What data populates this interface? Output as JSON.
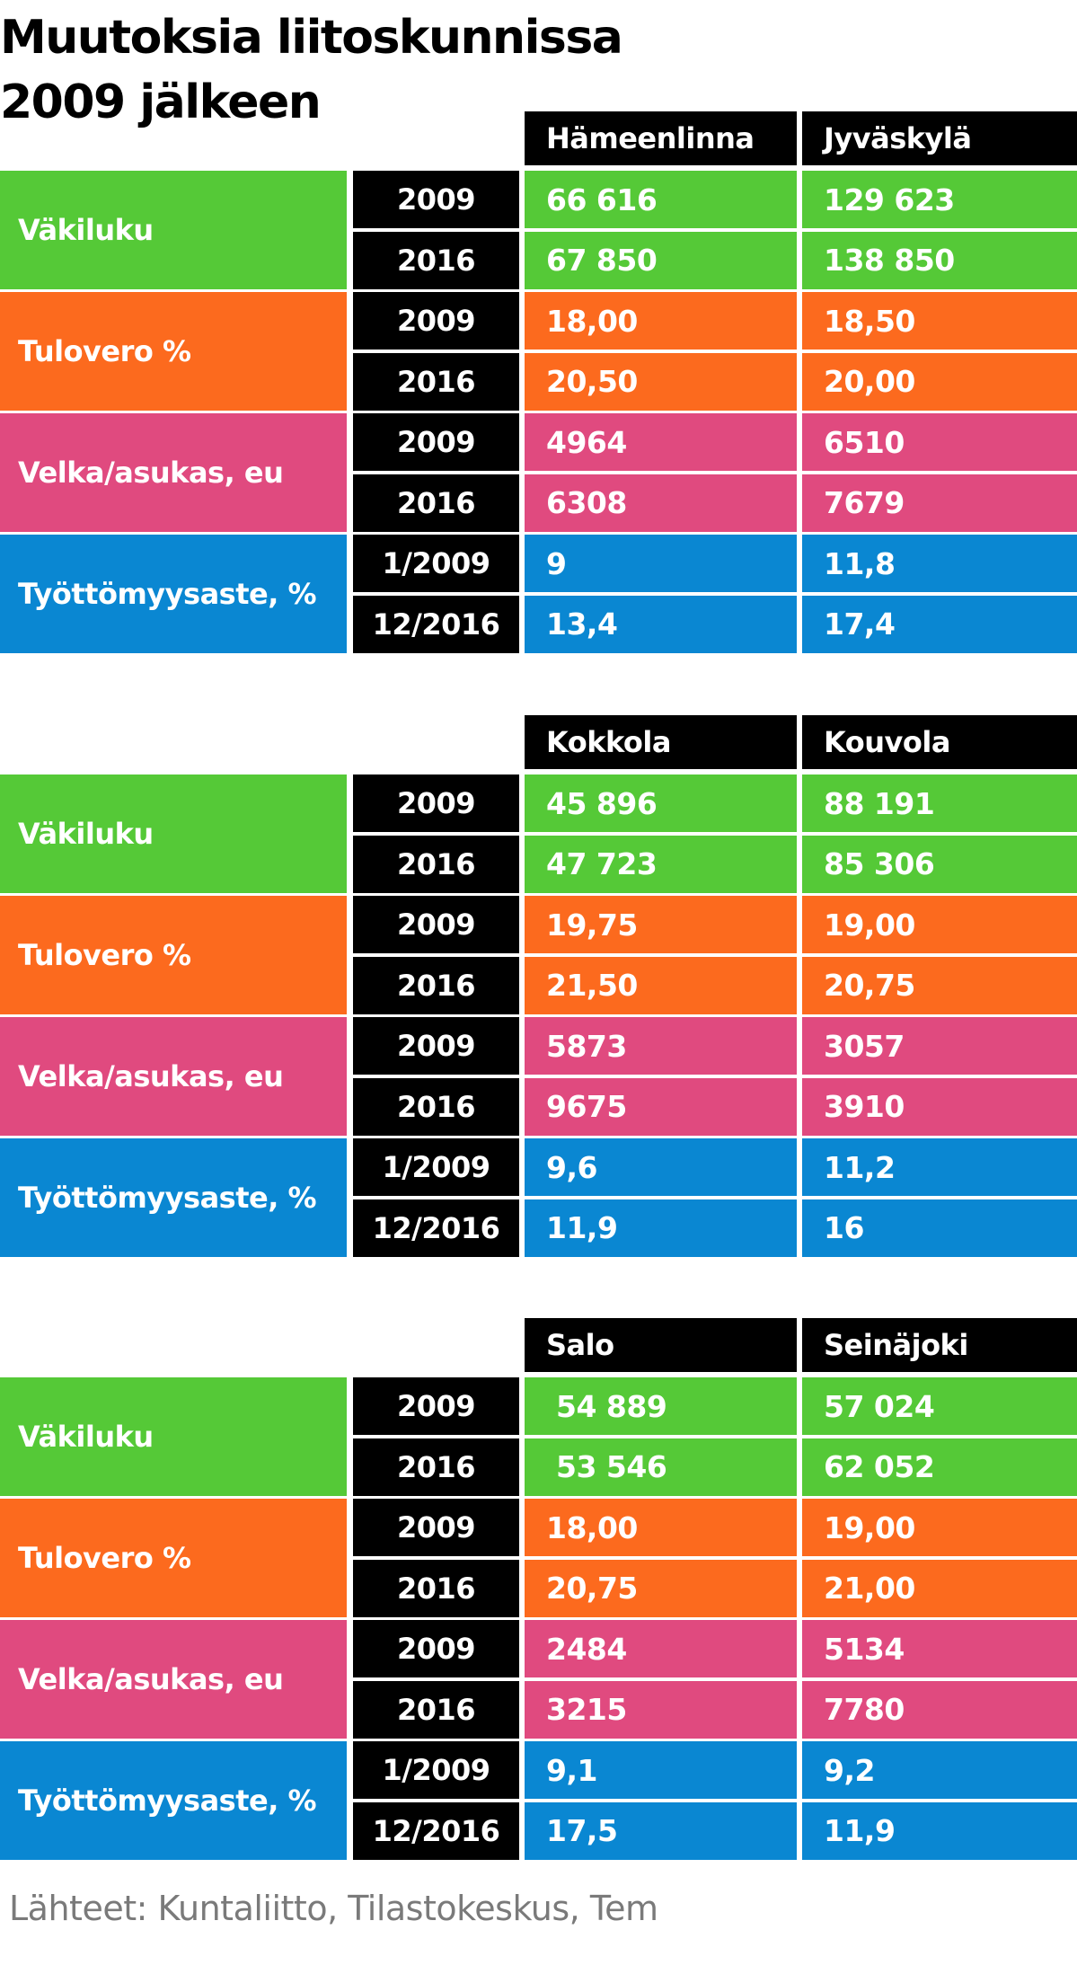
{
  "title_lines": [
    "Muutoksia liitoskunnissa",
    "2009 jälkeen"
  ],
  "source": "Lähteet: Kuntaliitto, Tilastokeskus, Tem",
  "colors": {
    "population": "#55c937",
    "tax": "#fc6a1e",
    "debt": "#e04a7f",
    "unemployment": "#0a87d2",
    "header": "#000000"
  },
  "chart_data": [
    {
      "type": "table",
      "columns": [
        "Hämeenlinna",
        "Jyväskylä"
      ],
      "rows": [
        {
          "label": "Väkiluku",
          "color_key": "population",
          "entries": [
            {
              "period": "2009",
              "values": [
                "66 616",
                "129 623"
              ]
            },
            {
              "period": "2016",
              "values": [
                "67 850",
                "138 850"
              ]
            }
          ]
        },
        {
          "label": "Tulovero %",
          "color_key": "tax",
          "entries": [
            {
              "period": "2009",
              "values": [
                "18,00",
                "18,50"
              ]
            },
            {
              "period": "2016",
              "values": [
                "20,50",
                "20,00"
              ]
            }
          ]
        },
        {
          "label": "Velka/asukas, eu",
          "color_key": "debt",
          "entries": [
            {
              "period": "2009",
              "values": [
                "4964",
                "6510"
              ]
            },
            {
              "period": "2016",
              "values": [
                "6308",
                "7679"
              ]
            }
          ]
        },
        {
          "label": "Työttömyysaste, %",
          "color_key": "unemployment",
          "entries": [
            {
              "period": "1/2009",
              "values": [
                "9",
                "11,8"
              ]
            },
            {
              "period": "12/2016",
              "values": [
                "13,4",
                "17,4"
              ]
            }
          ]
        }
      ]
    },
    {
      "type": "table",
      "columns": [
        "Kokkola",
        "Kouvola"
      ],
      "rows": [
        {
          "label": "Väkiluku",
          "color_key": "population",
          "entries": [
            {
              "period": "2009",
              "values": [
                "45 896",
                "88 191"
              ]
            },
            {
              "period": "2016",
              "values": [
                "47 723",
                "85 306"
              ]
            }
          ]
        },
        {
          "label": "Tulovero %",
          "color_key": "tax",
          "entries": [
            {
              "period": "2009",
              "values": [
                "19,75",
                "19,00"
              ]
            },
            {
              "period": "2016",
              "values": [
                "21,50",
                "20,75"
              ]
            }
          ]
        },
        {
          "label": "Velka/asukas, eu",
          "color_key": "debt",
          "entries": [
            {
              "period": "2009",
              "values": [
                "5873",
                "3057"
              ]
            },
            {
              "period": "2016",
              "values": [
                "9675",
                "3910"
              ]
            }
          ]
        },
        {
          "label": "Työttömyysaste, %",
          "color_key": "unemployment",
          "entries": [
            {
              "period": "1/2009",
              "values": [
                "9,6",
                "11,2"
              ]
            },
            {
              "period": "12/2016",
              "values": [
                "11,9",
                "16"
              ]
            }
          ]
        }
      ]
    },
    {
      "type": "table",
      "columns": [
        "Salo",
        "Seinäjoki"
      ],
      "rows": [
        {
          "label": "Väkiluku",
          "color_key": "population",
          "entries": [
            {
              "period": "2009",
              "values": [
                " 54 889",
                "57 024"
              ]
            },
            {
              "period": "2016",
              "values": [
                " 53 546",
                "62 052"
              ]
            }
          ]
        },
        {
          "label": "Tulovero %",
          "color_key": "tax",
          "entries": [
            {
              "period": "2009",
              "values": [
                "18,00",
                "19,00"
              ]
            },
            {
              "period": "2016",
              "values": [
                "20,75",
                "21,00"
              ]
            }
          ]
        },
        {
          "label": "Velka/asukas, eu",
          "color_key": "debt",
          "entries": [
            {
              "period": "2009",
              "values": [
                "2484",
                "5134"
              ]
            },
            {
              "period": "2016",
              "values": [
                "3215",
                "7780"
              ]
            }
          ]
        },
        {
          "label": "Työttömyysaste, %",
          "color_key": "unemployment",
          "entries": [
            {
              "period": "1/2009",
              "values": [
                "9,1",
                "9,2"
              ]
            },
            {
              "period": "12/2016",
              "values": [
                "17,5",
                "11,9"
              ]
            }
          ]
        }
      ]
    }
  ]
}
